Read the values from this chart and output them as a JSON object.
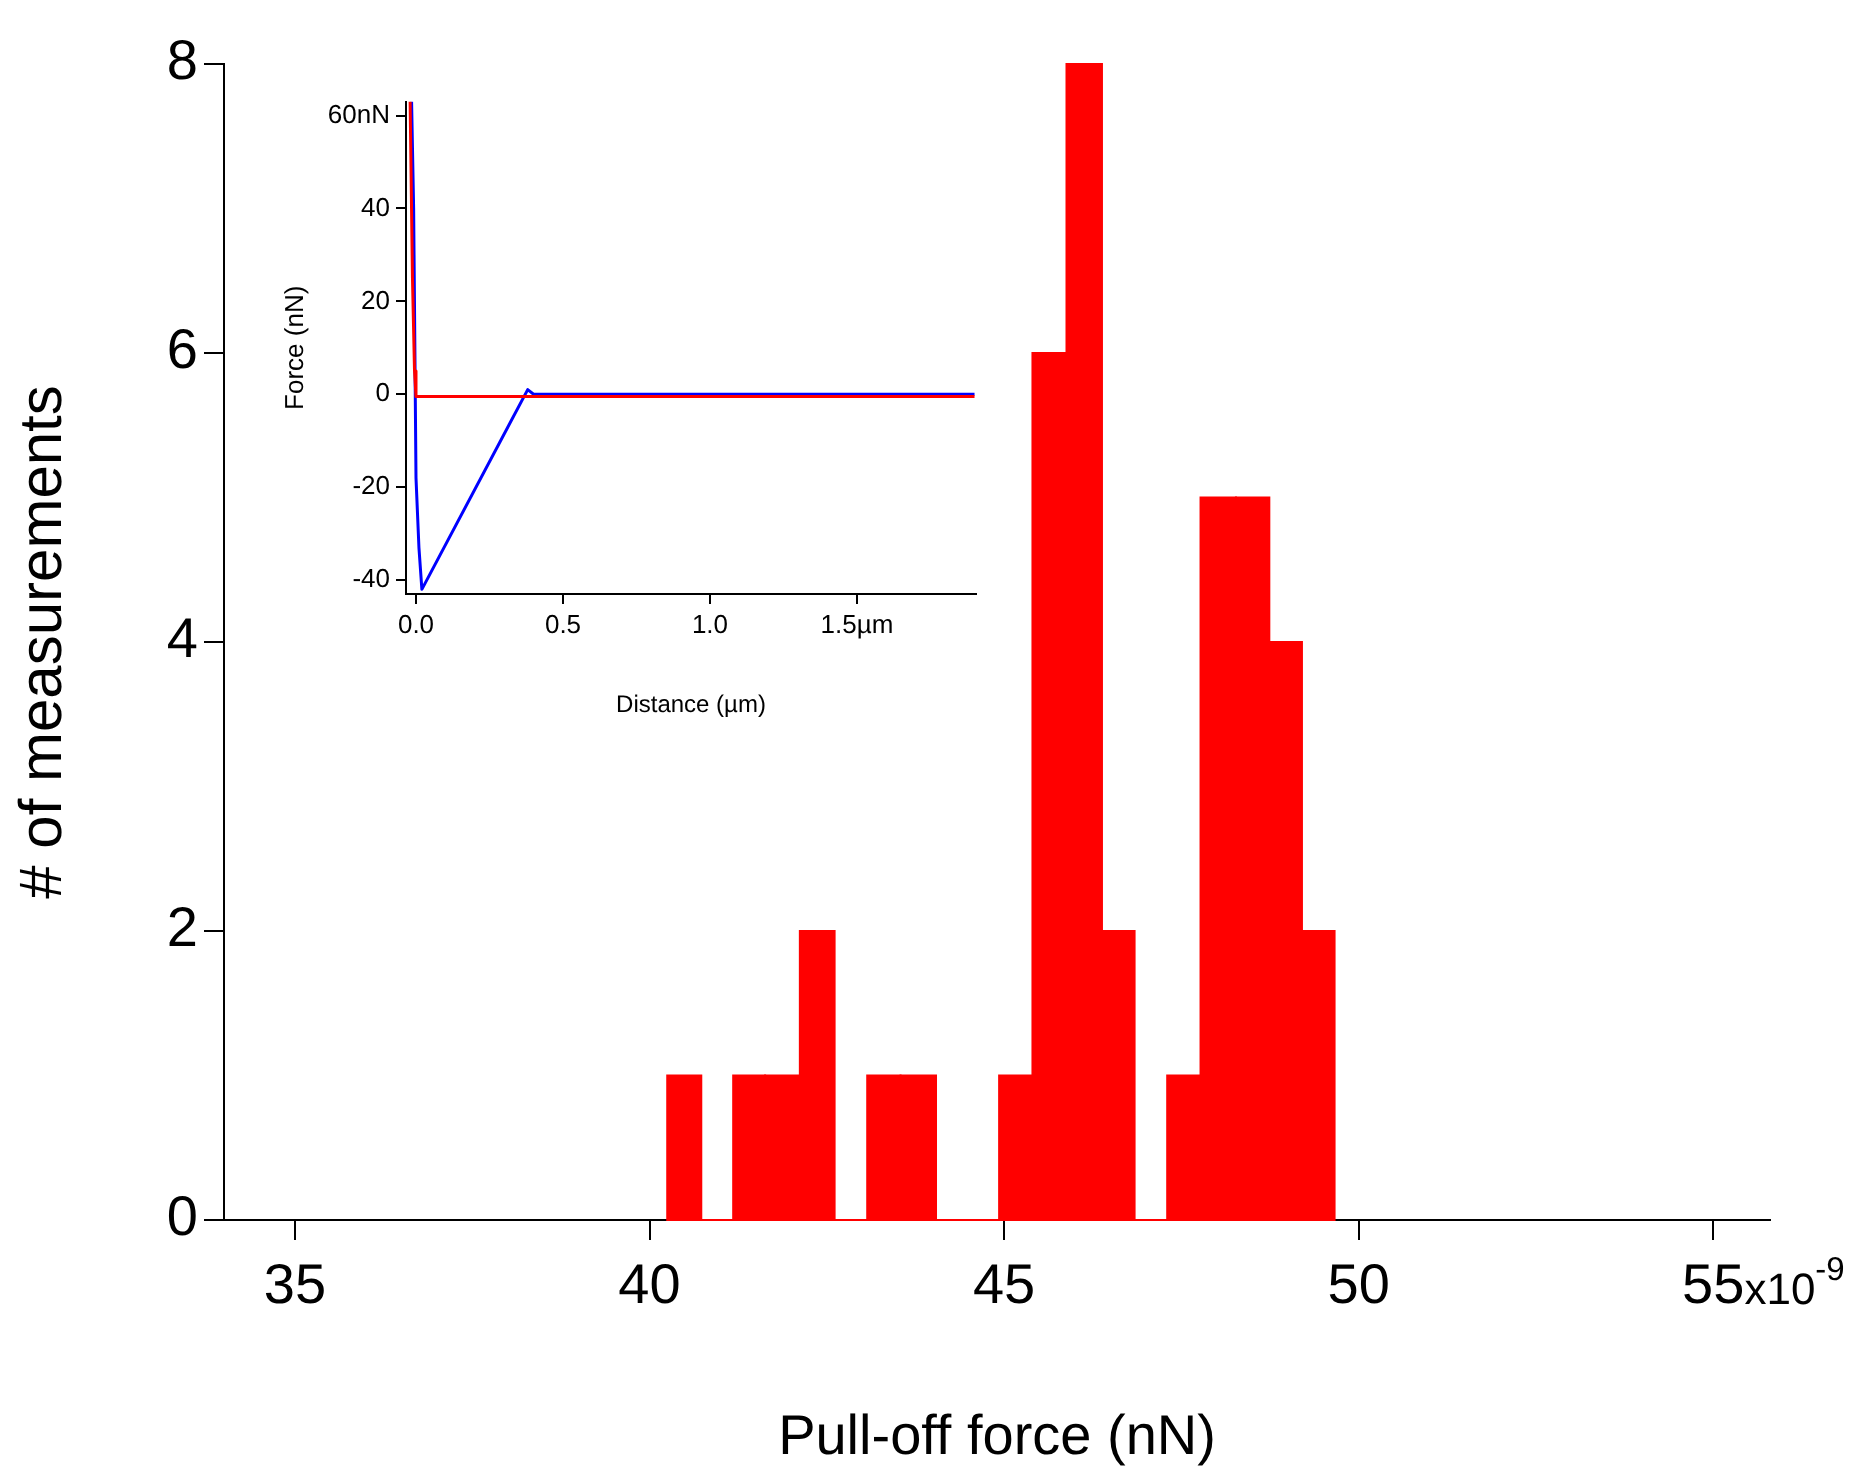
{
  "chart_data": [
    {
      "type": "histogram",
      "xlabel": "Pull-off force (nN)",
      "ylabel": "# of measurements",
      "color": "#ff0000",
      "annotations": [
        "x10$^{-9}$"
      ],
      "bins": [
        40.25,
        40.73,
        41.18,
        41.63,
        42.12,
        42.61,
        43.07,
        43.54,
        44.04,
        44.93,
        45.4,
        45.88,
        46.38,
        46.84,
        47.3,
        47.77,
        48.27,
        48.74,
        49.2,
        49.66
      ],
      "values": [
        1,
        0,
        1,
        1,
        2,
        0,
        1,
        1,
        0,
        1,
        6,
        8,
        2,
        0,
        1,
        5,
        5,
        4,
        2
      ],
      "xlim": [
        34,
        55.8
      ],
      "xticks": [
        35,
        40,
        45,
        50,
        55
      ],
      "ylim": [
        0,
        8
      ],
      "yticks": [
        0,
        2,
        4,
        6,
        8
      ],
      "grid": false,
      "legend": false
    },
    {
      "type": "line",
      "xlabel": "Distance (µm)",
      "ylabel": "Force (nN)",
      "grid": false,
      "legend": false,
      "marker": "none",
      "line_style": "solid",
      "xlim": [
        -0.034,
        1.905
      ],
      "xticks": [
        {
          "value": 0,
          "label": "0.0"
        },
        0.5,
        {
          "value": 1,
          "label": "1.0"
        },
        {
          "value": 1.5,
          "label": "1.5µm"
        }
      ],
      "ylim": [
        -43,
        63
      ],
      "yticks": [
        -40,
        -20,
        0,
        20,
        40,
        {
          "value": 60,
          "label": "60nN"
        }
      ],
      "series": [
        {
          "color": "#ff0000",
          "x": [
            -0.02,
            -0.012,
            -0.005,
            0,
            0.5,
            1.0,
            1.5,
            1.9
          ],
          "values": [
            63,
            25,
            5,
            -0.5,
            -0.5,
            -0.5,
            -0.5,
            -0.5
          ]
        },
        {
          "color": "#0000ff",
          "x": [
            -0.015,
            -0.008,
            0,
            0.01,
            0.02,
            0.38,
            0.4,
            1.0,
            1.5,
            1.9
          ],
          "values": [
            63,
            40,
            -18,
            -33,
            -42,
            1,
            0,
            0,
            0,
            0
          ]
        }
      ]
    }
  ]
}
